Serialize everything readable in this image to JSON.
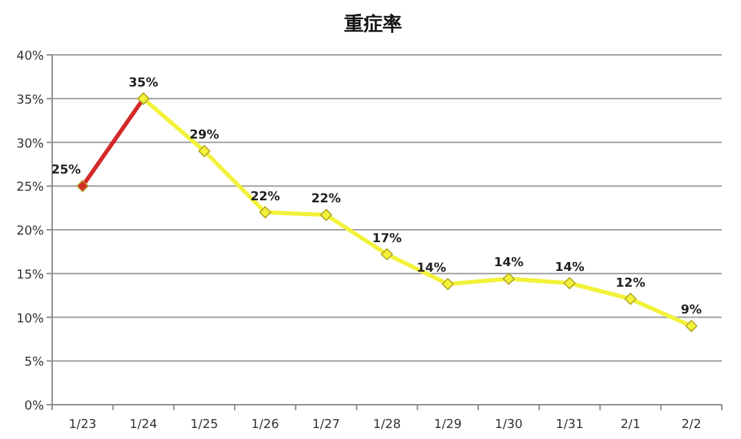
{
  "chart_data": {
    "type": "line",
    "title": "重症率",
    "categories": [
      "1/23",
      "1/24",
      "1/25",
      "1/26",
      "1/27",
      "1/28",
      "1/29",
      "1/30",
      "1/31",
      "2/1",
      "2/2"
    ],
    "series": [
      {
        "color": "#d42a2a",
        "values": [
          25,
          35,
          null,
          null,
          null,
          null,
          null,
          null,
          null,
          null,
          null
        ],
        "value_labels": [
          "25%",
          null,
          null,
          null,
          null,
          null,
          null,
          null,
          null,
          null,
          null
        ]
      },
      {
        "color": "#f2f23a",
        "values": [
          null,
          35,
          29,
          22,
          21.7,
          17.2,
          13.8,
          14.4,
          13.9,
          12.1,
          9
        ],
        "value_labels": [
          null,
          "35%",
          "29%",
          "22%",
          "22%",
          "17%",
          "14%",
          "14%",
          "14%",
          "12%",
          "9%"
        ]
      }
    ],
    "ylim": [
      0,
      40
    ],
    "yticks": [
      {
        "value": 0,
        "label": "0%"
      },
      {
        "value": 5,
        "label": "5%"
      },
      {
        "value": 10,
        "label": "10%"
      },
      {
        "value": 15,
        "label": "15%"
      },
      {
        "value": 20,
        "label": "20%"
      },
      {
        "value": 25,
        "label": "25%"
      },
      {
        "value": 30,
        "label": "30%"
      },
      {
        "value": 35,
        "label": "35%"
      },
      {
        "value": 40,
        "label": "40%"
      }
    ],
    "grid": "y",
    "marker": "diamond",
    "line_style": "solid"
  }
}
